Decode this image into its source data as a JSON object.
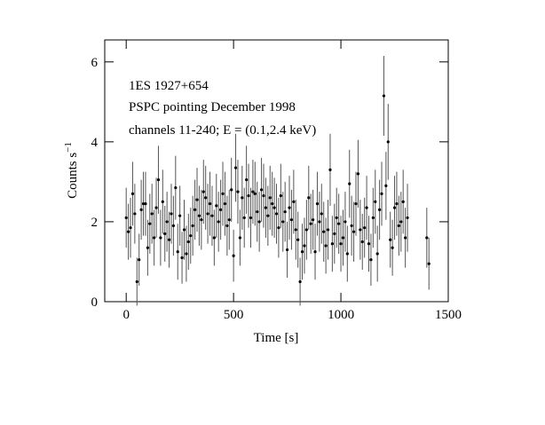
{
  "chart_data": {
    "type": "scatter",
    "annotations": [
      "1ES 1927+654",
      "PSPC pointing December 1998",
      "channels 11-240; E = (0.1,2.4 keV)"
    ],
    "xlabel": "Time [s]",
    "ylabel": "Counts s",
    "ylabel_superscript": "−1",
    "xlim": [
      -100,
      1500
    ],
    "ylim": [
      0,
      6.55
    ],
    "xticks": [
      0,
      500,
      1000,
      1500
    ],
    "yticks": [
      0,
      2,
      4,
      6
    ],
    "x": [
      0,
      10,
      20,
      30,
      40,
      50,
      60,
      70,
      80,
      90,
      100,
      110,
      120,
      130,
      140,
      150,
      160,
      170,
      180,
      190,
      200,
      210,
      220,
      230,
      240,
      250,
      260,
      270,
      280,
      290,
      300,
      310,
      320,
      330,
      340,
      350,
      360,
      370,
      380,
      390,
      400,
      410,
      420,
      430,
      440,
      450,
      460,
      470,
      480,
      490,
      500,
      510,
      520,
      530,
      540,
      550,
      560,
      570,
      580,
      590,
      600,
      610,
      620,
      630,
      640,
      650,
      660,
      670,
      680,
      690,
      700,
      710,
      720,
      730,
      740,
      750,
      760,
      770,
      780,
      790,
      800,
      810,
      820,
      830,
      840,
      850,
      860,
      870,
      880,
      890,
      900,
      910,
      920,
      930,
      940,
      950,
      960,
      970,
      980,
      990,
      1000,
      1010,
      1020,
      1030,
      1040,
      1050,
      1060,
      1070,
      1080,
      1090,
      1100,
      1110,
      1120,
      1130,
      1140,
      1150,
      1160,
      1170,
      1180,
      1190,
      1200,
      1210,
      1220,
      1230,
      1240,
      1250,
      1260,
      1270,
      1280,
      1290,
      1300,
      1310,
      1400,
      1410
    ],
    "series": [
      {
        "color": "#000000",
        "values": [
          2.1,
          1.75,
          1.85,
          2.7,
          2.2,
          0.5,
          1.05,
          2.3,
          2.45,
          2.45,
          1.35,
          1.95,
          2.2,
          1.6,
          2.35,
          3.05,
          1.6,
          2.5,
          1.7,
          2.0,
          1.55,
          2.2,
          1.9,
          2.85,
          1.25,
          2.15,
          1.1,
          1.8,
          1.2,
          1.5,
          1.65,
          1.9,
          2.3,
          2.55,
          2.15,
          2.05,
          2.75,
          2.6,
          2.2,
          2.45,
          2.15,
          1.6,
          2.4,
          2.0,
          2.3,
          2.7,
          2.45,
          1.9,
          2.05,
          2.8,
          1.15,
          3.35,
          2.75,
          1.6,
          2.6,
          2.1,
          3.05,
          2.65,
          2.1,
          2.75,
          2.7,
          2.25,
          2.0,
          2.8,
          2.65,
          2.35,
          2.15,
          2.6,
          2.45,
          2.35,
          2.2,
          1.85,
          2.65,
          2.0,
          2.25,
          1.3,
          2.35,
          2.05,
          2.5,
          1.8,
          1.55,
          0.5,
          1.25,
          1.4,
          1.8,
          2.6,
          1.95,
          2.05,
          1.25,
          2.45,
          2.0,
          2.2,
          1.75,
          1.4,
          1.8,
          3.3,
          1.45,
          1.7,
          2.1,
          1.95,
          1.45,
          1.6,
          2.0,
          1.2,
          2.95,
          1.9,
          1.75,
          2.45,
          3.2,
          1.8,
          1.5,
          1.85,
          2.35,
          1.45,
          1.05,
          2.1,
          2.5,
          1.2,
          2.3,
          2.7,
          5.15,
          2.9,
          4.0,
          1.55,
          1.35,
          2.35,
          2.45,
          1.9,
          2.0,
          2.5,
          1.6,
          2.1,
          1.6,
          0.95
        ],
        "errors": [
          0.75,
          0.7,
          0.75,
          0.8,
          0.75,
          0.6,
          0.65,
          0.75,
          0.8,
          0.8,
          0.7,
          0.75,
          0.75,
          0.7,
          0.75,
          0.85,
          0.7,
          0.8,
          0.7,
          0.75,
          0.7,
          0.75,
          0.75,
          0.8,
          0.7,
          0.75,
          0.65,
          0.75,
          0.7,
          0.7,
          0.7,
          0.75,
          0.75,
          0.8,
          0.75,
          0.75,
          0.8,
          0.8,
          0.75,
          0.8,
          0.75,
          0.7,
          0.8,
          0.75,
          0.75,
          0.8,
          0.8,
          0.75,
          0.75,
          0.8,
          0.65,
          0.85,
          0.8,
          0.7,
          0.8,
          0.75,
          0.85,
          0.8,
          0.75,
          0.8,
          0.8,
          0.75,
          0.75,
          0.8,
          0.8,
          0.75,
          0.75,
          0.8,
          0.8,
          0.75,
          0.75,
          0.75,
          0.8,
          0.75,
          0.75,
          0.7,
          0.8,
          0.75,
          0.8,
          0.75,
          0.7,
          0.6,
          0.7,
          0.7,
          0.75,
          0.8,
          0.75,
          0.75,
          0.7,
          0.8,
          0.75,
          0.75,
          0.75,
          0.7,
          0.75,
          0.9,
          0.7,
          0.75,
          0.75,
          0.75,
          0.7,
          0.7,
          0.75,
          0.7,
          0.85,
          0.75,
          0.75,
          0.8,
          0.85,
          0.75,
          0.7,
          0.75,
          0.8,
          0.7,
          0.65,
          0.75,
          0.8,
          0.7,
          0.75,
          0.8,
          1.0,
          0.85,
          0.95,
          0.7,
          0.7,
          0.8,
          0.8,
          0.75,
          0.75,
          0.8,
          0.75,
          0.85,
          0.75,
          0.65
        ]
      }
    ]
  }
}
